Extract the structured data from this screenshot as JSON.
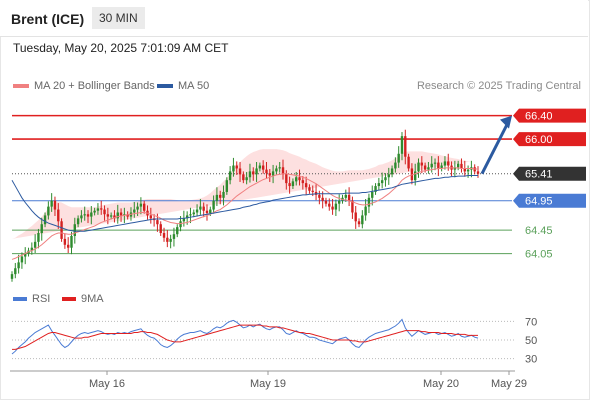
{
  "header": {
    "instrument": "Brent (ICE)",
    "interval": "30 MIN",
    "datetime": "Tuesday, May 20, 2025 7:01:09 AM CET",
    "credit": "Research © 2025 Trading Central"
  },
  "legend_top": [
    {
      "label": "MA 20 + Bollinger Bands",
      "color": "#f08080"
    },
    {
      "label": "MA 50",
      "color": "#2c5aa0"
    }
  ],
  "legend_bottom": [
    {
      "label": "RSI",
      "color": "#4a7bd4"
    },
    {
      "label": "9MA",
      "color": "#e02020"
    }
  ],
  "colors": {
    "up": "#2e8b2e",
    "down": "#d42020",
    "band": "#fde0e0",
    "ma20": "#f08080",
    "ma50": "#2c5aa0",
    "resistance": "#e02020",
    "pivot": "#4a7bd4",
    "support": "#5aa05a",
    "arrow": "#2c5aa0"
  },
  "chart_data": [
    {
      "type": "candlestick",
      "ylim": [
        63.6,
        66.7
      ],
      "x_ticks": [
        "May 16",
        "May 19",
        "May 20",
        "May 29"
      ],
      "levels": [
        {
          "value": 66.4,
          "label": "66.40",
          "kind": "resistance"
        },
        {
          "value": 66.0,
          "label": "66.00",
          "kind": "resistance"
        },
        {
          "value": 65.41,
          "label": "65.41",
          "kind": "last"
        },
        {
          "value": 64.95,
          "label": "64.95",
          "kind": "pivot"
        },
        {
          "value": 64.45,
          "label": "64.45",
          "kind": "support"
        },
        {
          "value": 64.05,
          "label": "64.05",
          "kind": "support"
        }
      ],
      "forecast": {
        "from": 65.41,
        "to": 66.4
      },
      "close": [
        63.7,
        63.8,
        63.9,
        64.0,
        64.05,
        64.1,
        64.15,
        64.25,
        64.4,
        64.55,
        64.7,
        64.85,
        64.95,
        64.8,
        64.6,
        64.3,
        64.2,
        64.15,
        64.35,
        64.55,
        64.65,
        64.7,
        64.72,
        64.68,
        64.75,
        64.78,
        64.82,
        64.8,
        64.72,
        64.68,
        64.7,
        64.65,
        64.75,
        64.7,
        64.72,
        64.68,
        64.75,
        64.8,
        64.85,
        64.9,
        64.78,
        64.7,
        64.65,
        64.62,
        64.55,
        64.4,
        64.32,
        64.25,
        64.3,
        64.38,
        64.5,
        64.6,
        64.65,
        64.7,
        64.72,
        64.75,
        64.8,
        64.85,
        64.78,
        64.74,
        64.8,
        64.95,
        65.05,
        65.0,
        65.1,
        65.3,
        65.45,
        65.55,
        65.5,
        65.4,
        65.3,
        65.35,
        65.45,
        65.4,
        65.5,
        65.55,
        65.48,
        65.42,
        65.38,
        65.45,
        65.5,
        65.52,
        65.4,
        65.25,
        65.2,
        65.28,
        65.35,
        65.3,
        65.25,
        65.18,
        65.12,
        65.1,
        65.05,
        65.0,
        64.95,
        64.9,
        64.85,
        64.8,
        64.9,
        64.95,
        65.0,
        65.05,
        64.95,
        64.75,
        64.6,
        64.55,
        64.7,
        64.85,
        65.0,
        65.1,
        65.2,
        65.25,
        65.3,
        65.35,
        65.4,
        65.5,
        65.6,
        65.75,
        66.05,
        65.7,
        65.5,
        65.3,
        65.45,
        65.6,
        65.55,
        65.48,
        65.52,
        65.58,
        65.6,
        65.5,
        65.55,
        65.62,
        65.55,
        65.48,
        65.52,
        65.58,
        65.5,
        65.45,
        65.48,
        65.52,
        65.45,
        65.41
      ],
      "ma20": [
        63.95,
        63.97,
        64.0,
        64.02,
        64.05,
        64.08,
        64.1,
        64.13,
        64.16,
        64.2,
        64.25,
        64.3,
        64.35,
        64.38,
        64.4,
        64.4,
        64.39,
        64.38,
        64.38,
        64.4,
        64.42,
        64.44,
        64.46,
        64.48,
        64.5,
        64.52,
        64.55,
        64.58,
        64.6,
        64.62,
        64.64,
        64.66,
        64.68,
        64.69,
        64.7,
        64.71,
        64.72,
        64.73,
        64.74,
        64.75,
        64.75,
        64.74,
        64.72,
        64.7,
        64.68,
        64.65,
        64.62,
        64.6,
        64.58,
        64.57,
        64.56,
        64.56,
        64.57,
        64.58,
        64.6,
        64.62,
        64.64,
        64.66,
        64.68,
        64.7,
        64.72,
        64.75,
        64.78,
        64.8,
        64.84,
        64.88,
        64.93,
        64.98,
        65.03,
        65.07,
        65.11,
        65.15,
        65.19,
        65.22,
        65.25,
        65.28,
        65.31,
        65.33,
        65.35,
        65.37,
        65.39,
        65.4,
        65.41,
        65.41,
        65.4,
        65.39,
        65.38,
        65.37,
        65.35,
        65.33,
        65.3,
        65.27,
        65.24,
        65.2,
        65.16,
        65.12,
        65.08,
        65.04,
        65.01,
        64.99,
        64.97,
        64.96,
        64.95,
        64.93,
        64.91,
        64.89,
        64.88,
        64.88,
        64.89,
        64.91,
        64.93,
        64.96,
        64.99,
        65.03,
        65.07,
        65.12,
        65.17,
        65.23,
        65.3,
        65.34,
        65.37,
        65.39,
        65.41,
        65.43,
        65.45,
        65.46,
        65.47,
        65.48,
        65.49,
        65.5,
        65.5,
        65.51,
        65.51,
        65.51,
        65.51,
        65.51,
        65.5,
        65.5,
        65.5,
        65.5,
        65.49,
        65.49
      ],
      "ma50": [
        65.3,
        65.2,
        65.1,
        65.0,
        64.92,
        64.85,
        64.78,
        64.72,
        64.67,
        64.63,
        64.6,
        64.57,
        64.55,
        64.53,
        64.51,
        64.49,
        64.47,
        64.45,
        64.44,
        64.43,
        64.43,
        64.43,
        64.43,
        64.44,
        64.45,
        64.46,
        64.47,
        64.48,
        64.49,
        64.5,
        64.51,
        64.52,
        64.53,
        64.54,
        64.55,
        64.56,
        64.57,
        64.58,
        64.59,
        64.6,
        64.61,
        64.62,
        64.63,
        64.64,
        64.64,
        64.64,
        64.64,
        64.64,
        64.64,
        64.64,
        64.64,
        64.65,
        64.65,
        64.66,
        64.67,
        64.68,
        64.69,
        64.7,
        64.71,
        64.72,
        64.73,
        64.74,
        64.75,
        64.76,
        64.77,
        64.78,
        64.79,
        64.8,
        64.81,
        64.82,
        64.84,
        64.85,
        64.86,
        64.88,
        64.89,
        64.91,
        64.92,
        64.93,
        64.94,
        64.96,
        64.97,
        64.98,
        64.99,
        65.0,
        65.01,
        65.02,
        65.03,
        65.04,
        65.05,
        65.05,
        65.06,
        65.06,
        65.07,
        65.07,
        65.07,
        65.07,
        65.07,
        65.07,
        65.07,
        65.07,
        65.07,
        65.08,
        65.08,
        65.08,
        65.08,
        65.08,
        65.09,
        65.09,
        65.1,
        65.11,
        65.12,
        65.13,
        65.14,
        65.15,
        65.16,
        65.17,
        65.19,
        65.21,
        65.23,
        65.24,
        65.25,
        65.26,
        65.27,
        65.28,
        65.29,
        65.3,
        65.31,
        65.32,
        65.33,
        65.33,
        65.34,
        65.35,
        65.35,
        65.36,
        65.36,
        65.37,
        65.37,
        65.37,
        65.38,
        65.38,
        65.38,
        65.38
      ],
      "band_width": [
        0.35,
        0.35,
        0.36,
        0.37,
        0.38,
        0.4,
        0.42,
        0.44,
        0.46,
        0.48,
        0.5,
        0.52,
        0.54,
        0.54,
        0.53,
        0.52,
        0.5,
        0.48,
        0.46,
        0.44,
        0.42,
        0.4,
        0.38,
        0.36,
        0.34,
        0.32,
        0.3,
        0.29,
        0.28,
        0.27,
        0.26,
        0.25,
        0.24,
        0.23,
        0.22,
        0.21,
        0.2,
        0.2,
        0.2,
        0.21,
        0.22,
        0.24,
        0.26,
        0.28,
        0.3,
        0.33,
        0.36,
        0.38,
        0.4,
        0.4,
        0.4,
        0.39,
        0.38,
        0.37,
        0.36,
        0.35,
        0.34,
        0.33,
        0.33,
        0.34,
        0.36,
        0.38,
        0.4,
        0.42,
        0.44,
        0.46,
        0.48,
        0.5,
        0.52,
        0.54,
        0.55,
        0.56,
        0.56,
        0.56,
        0.55,
        0.54,
        0.52,
        0.5,
        0.48,
        0.46,
        0.44,
        0.42,
        0.4,
        0.38,
        0.36,
        0.35,
        0.34,
        0.33,
        0.32,
        0.32,
        0.32,
        0.33,
        0.34,
        0.35,
        0.36,
        0.38,
        0.4,
        0.42,
        0.44,
        0.46,
        0.48,
        0.5,
        0.52,
        0.54,
        0.56,
        0.58,
        0.59,
        0.6,
        0.6,
        0.6,
        0.6,
        0.6,
        0.58,
        0.56,
        0.54,
        0.52,
        0.5,
        0.48,
        0.46,
        0.44,
        0.42,
        0.4,
        0.38,
        0.36,
        0.34,
        0.32,
        0.3,
        0.28,
        0.26,
        0.24,
        0.22,
        0.2,
        0.18,
        0.17,
        0.16,
        0.15,
        0.14,
        0.13,
        0.12,
        0.12
      ]
    },
    {
      "type": "line",
      "ylim": [
        20,
        80
      ],
      "y_ticks": [
        70,
        50,
        30
      ],
      "series": [
        {
          "name": "RSI",
          "values": [
            35,
            38,
            42,
            45,
            48,
            52,
            55,
            58,
            60,
            62,
            64,
            66,
            60,
            55,
            50,
            45,
            42,
            44,
            48,
            52,
            55,
            57,
            58,
            57,
            58,
            59,
            60,
            59,
            57,
            56,
            57,
            56,
            58,
            57,
            58,
            57,
            59,
            60,
            61,
            62,
            58,
            55,
            53,
            52,
            49,
            45,
            43,
            42,
            44,
            47,
            51,
            54,
            56,
            57,
            58,
            58,
            59,
            60,
            58,
            57,
            59,
            62,
            64,
            63,
            65,
            68,
            70,
            71,
            69,
            66,
            63,
            64,
            66,
            64,
            66,
            67,
            64,
            62,
            61,
            63,
            64,
            64,
            61,
            57,
            56,
            58,
            60,
            58,
            57,
            55,
            53,
            53,
            52,
            50,
            49,
            48,
            47,
            46,
            49,
            51,
            52,
            53,
            50,
            46,
            43,
            42,
            46,
            50,
            53,
            55,
            57,
            58,
            59,
            60,
            61,
            63,
            65,
            68,
            72,
            63,
            58,
            54,
            57,
            60,
            58,
            56,
            57,
            58,
            58,
            56,
            57,
            58,
            56,
            54,
            55,
            57,
            54,
            53,
            54,
            55,
            53,
            52
          ]
        },
        {
          "name": "9MA",
          "values": [
            40,
            40,
            41,
            42,
            43,
            45,
            47,
            49,
            51,
            53,
            55,
            57,
            58,
            58,
            57,
            56,
            55,
            54,
            53,
            52,
            52,
            52,
            53,
            53,
            54,
            55,
            56,
            57,
            57,
            57,
            57,
            57,
            57,
            57,
            57,
            57,
            57,
            58,
            58,
            59,
            59,
            58,
            58,
            57,
            56,
            54,
            52,
            50,
            49,
            48,
            48,
            48,
            49,
            50,
            51,
            52,
            53,
            54,
            55,
            56,
            57,
            58,
            59,
            60,
            61,
            62,
            63,
            64,
            65,
            66,
            66,
            66,
            66,
            66,
            66,
            66,
            65,
            65,
            64,
            64,
            64,
            63,
            63,
            62,
            61,
            60,
            59,
            58,
            58,
            57,
            57,
            56,
            55,
            54,
            53,
            52,
            51,
            50,
            50,
            50,
            50,
            50,
            50,
            49,
            49,
            48,
            48,
            48,
            49,
            50,
            51,
            52,
            53,
            54,
            55,
            56,
            57,
            58,
            59,
            60,
            60,
            60,
            60,
            60,
            59,
            59,
            58,
            58,
            58,
            58,
            57,
            57,
            57,
            57,
            56,
            56,
            56,
            56,
            55,
            55,
            55,
            55
          ]
        }
      ]
    }
  ]
}
